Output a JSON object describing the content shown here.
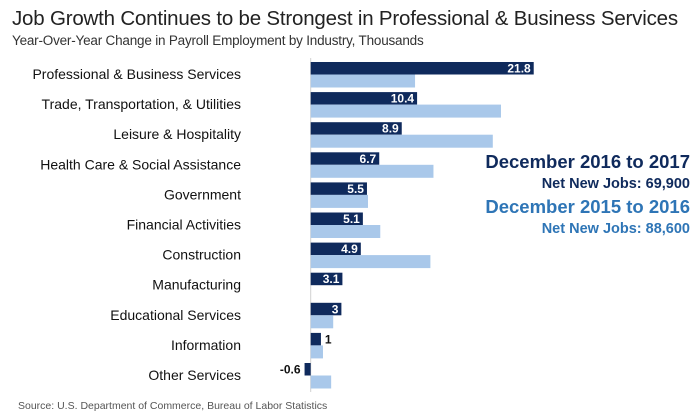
{
  "chart_data": {
    "type": "bar",
    "orientation": "horizontal",
    "title": "Job Growth Continues to be Strongest in Professional & Business Services",
    "subtitle": "Year-Over-Year Change in Payroll Employment by Industry, Thousands",
    "categories": [
      "Professional & Business Services",
      "Trade, Transportation, & Utilities",
      "Leisure & Hospitality",
      "Health Care & Social Assistance",
      "Government",
      "Financial Activities",
      "Construction",
      "Manufacturing",
      "Educational Services",
      "Information",
      "Other Services"
    ],
    "series": [
      {
        "name": "December 2016 to 2017",
        "color": "#0f2a5c",
        "values": [
          21.8,
          10.4,
          8.9,
          6.7,
          5.5,
          5.1,
          4.9,
          3.1,
          3,
          1,
          -0.6
        ],
        "labels": [
          "21.8",
          "10.4",
          "8.9",
          "6.7",
          "5.5",
          "5.1",
          "4.9",
          "3.1",
          "3",
          "1",
          "-0.6"
        ]
      },
      {
        "name": "December 2015 to 2016",
        "color": "#a9c8ea",
        "values": [
          10.2,
          18.6,
          17.8,
          12.0,
          5.6,
          6.8,
          11.7,
          0,
          2.2,
          1.2,
          2.0
        ]
      }
    ],
    "xlabel": "",
    "ylabel": "",
    "xlim": [
      -1,
      22
    ],
    "grid": false,
    "legend_position": "right",
    "legend": [
      {
        "title": "December 2016 to 2017",
        "subtitle": "Net New Jobs: 69,900"
      },
      {
        "title": "December 2015 to 2016",
        "subtitle": "Net New Jobs: 88,600"
      }
    ],
    "source": "Source: U.S. Department of Commerce, Bureau of Labor Statistics"
  }
}
